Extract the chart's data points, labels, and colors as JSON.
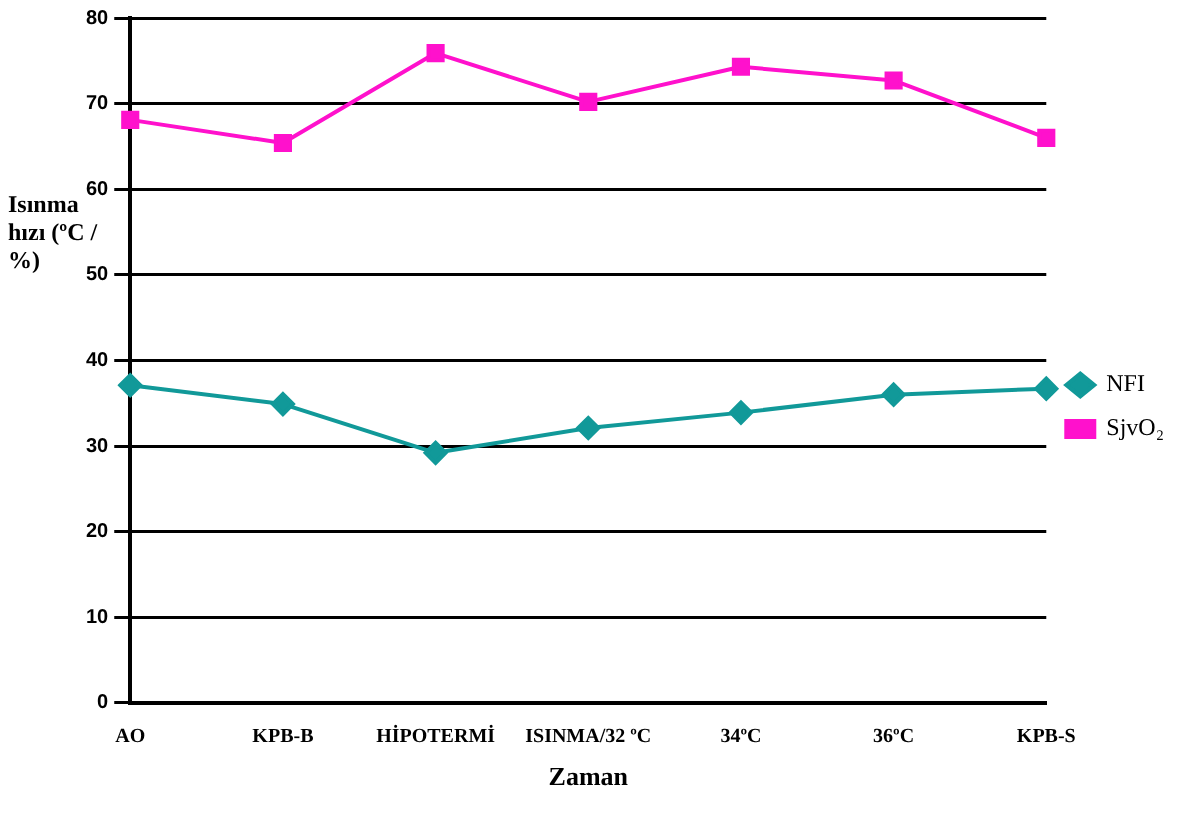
{
  "chart_data": {
    "type": "line",
    "xlabel": "Zaman",
    "ylabel": "Isınma hızı (ºC / %)",
    "categories": [
      "AO",
      "KPB-B",
      "HİPOTERMİ",
      "ISINMA/32 ºC",
      "34ºC",
      "36ºC",
      "KPB-S"
    ],
    "series": [
      {
        "name": "NFI",
        "color": "#119999",
        "marker": "diamond",
        "values": [
          37.1,
          34.9,
          29.2,
          32.1,
          33.9,
          36,
          36.7
        ]
      },
      {
        "name": "SjvO₂",
        "color": "#ff11cc",
        "marker": "square",
        "values": [
          68.1,
          65.4,
          75.9,
          70.2,
          74.3,
          72.7,
          66
        ]
      }
    ],
    "ylim": [
      0,
      80
    ],
    "yticks": [
      0,
      10,
      20,
      30,
      40,
      50,
      60,
      70,
      80
    ],
    "grid": "y",
    "legend": "right"
  }
}
